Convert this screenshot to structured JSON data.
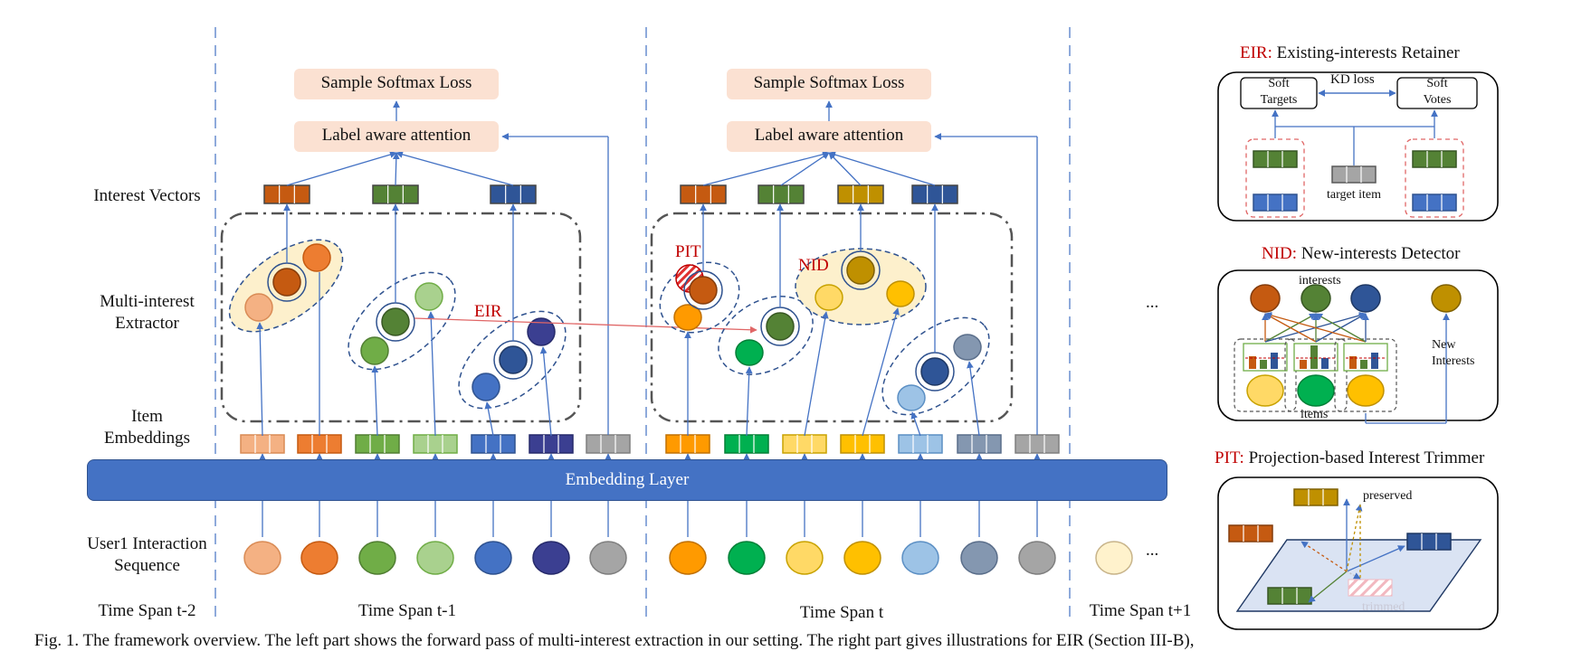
{
  "left_labels": {
    "interest_vectors": "Interest Vectors",
    "multi_interest_line1": "Multi-interest",
    "multi_interest_line2": "Extractor",
    "item_embeddings_line1": "Item",
    "item_embeddings_line2": "Embeddings",
    "sequence_line1": "User1 Interaction",
    "sequence_line2": "Sequence"
  },
  "time_spans": [
    "Time Span t-2",
    "Time Span t-1",
    "Time Span t",
    "Time Span t+1"
  ],
  "loss_label": "Sample Softmax Loss",
  "attention_label": "Label aware attention",
  "embedding_layer": "Embedding Layer",
  "ellipsis": "...",
  "mid_labels": {
    "eir": "EIR",
    "pit": "PIT",
    "nid": "NID"
  },
  "eir_panel": {
    "abbr": "EIR:",
    "title": " Existing-interests Retainer",
    "soft_targets_line1": "Soft",
    "soft_targets_line2": "Targets",
    "soft_votes_line1": "Soft",
    "soft_votes_line2": "Votes",
    "kd_loss": "KD loss",
    "target_item": "target item"
  },
  "nid_panel": {
    "abbr": "NID:",
    "title": " New-interests Detector",
    "interests": "interests",
    "items": "items",
    "new_line1": "New",
    "new_line2": "Interests"
  },
  "pit_panel": {
    "abbr": "PIT:",
    "title": " Projection-based Interest Trimmer",
    "preserved": "preserved",
    "trimmed": "trimmed"
  },
  "caption_fragment": "Fig. 1.   The framework overview. The left part shows the forward pass of multi-interest extraction in our setting. The right part gives illustrations for EIR (Section III-B),",
  "colors": {
    "peach": "#fbe1d2",
    "embedding_blue": "#4472c4",
    "dash_blue": "#8eaadb",
    "accent_red": "#c00000",
    "cluster_fill": "#fdf0cc"
  },
  "items_span_a": [
    {
      "color": "#f4b183",
      "border": "#d98b55"
    },
    {
      "color": "#ed7d31",
      "border": "#c55a11"
    },
    {
      "color": "#70ad47",
      "border": "#507e32"
    },
    {
      "color": "#a9d18e",
      "border": "#70ad47"
    },
    {
      "color": "#4472c4",
      "border": "#2f528f"
    },
    {
      "color": "#3b3f91",
      "border": "#262a6b"
    },
    {
      "color": "#a5a5a5",
      "border": "#7f7f7f"
    }
  ],
  "items_span_b": [
    {
      "color": "#ff9a00",
      "border": "#c07000"
    },
    {
      "color": "#00b050",
      "border": "#008037"
    },
    {
      "color": "#ffd966",
      "border": "#c8a200"
    },
    {
      "color": "#ffc000",
      "border": "#bf9000"
    },
    {
      "color": "#9dc3e6",
      "border": "#5b8fc4"
    },
    {
      "color": "#8497b0",
      "border": "#5a6e8a"
    },
    {
      "color": "#a5a5a5",
      "border": "#7f7f7f"
    }
  ],
  "next_item": {
    "color": "#fff2cc",
    "border": "#c8b48a"
  },
  "interest_vectors_a": [
    "#c55a11",
    "#548235",
    "#2f5597"
  ],
  "interest_vectors_b": [
    "#c55a11",
    "#548235",
    "#bf9000",
    "#2f5597"
  ]
}
